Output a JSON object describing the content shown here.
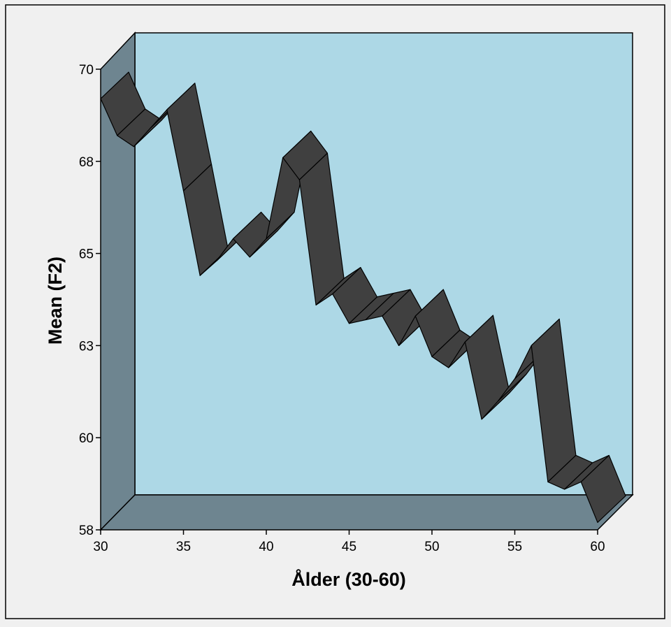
{
  "chart_data": {
    "type": "line",
    "x_label": "Ålder (30-60)",
    "y_label": "Mean (F2)",
    "x": [
      30,
      31,
      32,
      33,
      34,
      35,
      36,
      37,
      38,
      39,
      40,
      41,
      42,
      43,
      44,
      45,
      46,
      47,
      48,
      49,
      50,
      51,
      52,
      53,
      54,
      55,
      56,
      57,
      58,
      59,
      60
    ],
    "series": [
      {
        "name": "Mean (F2)",
        "color": "#404040",
        "values": [
          69.2,
          68.2,
          67.9,
          68.4,
          68.9,
          66.7,
          64.4,
          64.8,
          65.4,
          64.9,
          65.4,
          67.6,
          67.0,
          63.6,
          63.9,
          63.1,
          63.2,
          63.3,
          62.5,
          63.3,
          62.2,
          61.9,
          62.6,
          60.5,
          61.0,
          61.6,
          62.5,
          58.8,
          58.6,
          58.8,
          57.7
        ]
      }
    ],
    "xlim": [
      30,
      60
    ],
    "xticks": [
      30,
      35,
      40,
      45,
      50,
      55,
      60
    ],
    "ylim": [
      57.5,
      70
    ],
    "yticks": [
      {
        "value": 57.5,
        "label": "58"
      },
      {
        "value": 60,
        "label": "60"
      },
      {
        "value": 62.5,
        "label": "63"
      },
      {
        "value": 65,
        "label": "65"
      },
      {
        "value": 67.5,
        "label": "68"
      },
      {
        "value": 70,
        "label": "70"
      }
    ]
  }
}
